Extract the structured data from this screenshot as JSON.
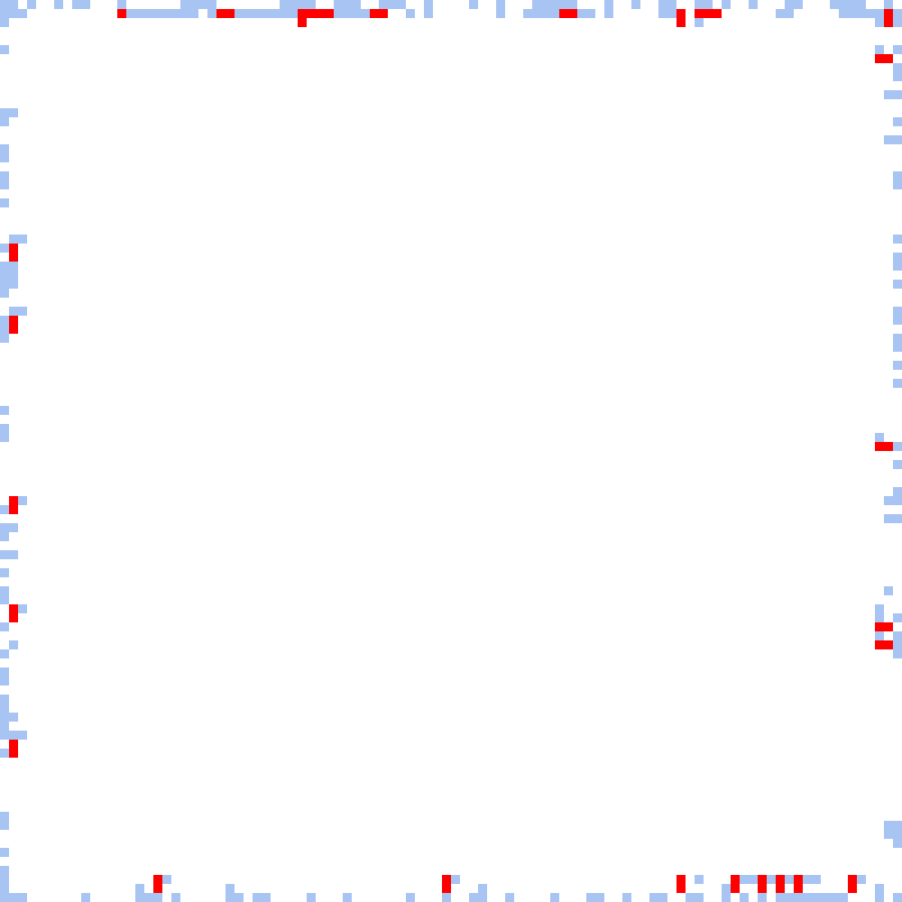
{
  "board": {
    "grid_size": 100,
    "palette": {
      "background": "#ffffff",
      "trail": "#a8c4f2",
      "marker": "#ff0000"
    },
    "trail_cells": [
      [
        0,
        0
      ],
      [
        1,
        0
      ],
      [
        3,
        0
      ],
      [
        6,
        0
      ],
      [
        8,
        0
      ],
      [
        9,
        0
      ],
      [
        13,
        0
      ],
      [
        20,
        0
      ],
      [
        21,
        0
      ],
      [
        22,
        0
      ],
      [
        23,
        0
      ],
      [
        31,
        0
      ],
      [
        32,
        0
      ],
      [
        33,
        0
      ],
      [
        34,
        0
      ],
      [
        37,
        0
      ],
      [
        38,
        0
      ],
      [
        39,
        0
      ],
      [
        42,
        0
      ],
      [
        43,
        0
      ],
      [
        44,
        0
      ],
      [
        47,
        0
      ],
      [
        52,
        0
      ],
      [
        55,
        0
      ],
      [
        59,
        0
      ],
      [
        60,
        0
      ],
      [
        61,
        0
      ],
      [
        62,
        0
      ],
      [
        63,
        0
      ],
      [
        67,
        0
      ],
      [
        70,
        0
      ],
      [
        73,
        0
      ],
      [
        74,
        0
      ],
      [
        77,
        0
      ],
      [
        78,
        0
      ],
      [
        80,
        0
      ],
      [
        83,
        0
      ],
      [
        87,
        0
      ],
      [
        88,
        0
      ],
      [
        92,
        0
      ],
      [
        93,
        0
      ],
      [
        94,
        0
      ],
      [
        95,
        0
      ],
      [
        98,
        0
      ],
      [
        0,
        1
      ],
      [
        1,
        1
      ],
      [
        2,
        1
      ],
      [
        14,
        1
      ],
      [
        15,
        1
      ],
      [
        16,
        1
      ],
      [
        17,
        1
      ],
      [
        18,
        1
      ],
      [
        19,
        1
      ],
      [
        20,
        1
      ],
      [
        21,
        1
      ],
      [
        23,
        1
      ],
      [
        24,
        1
      ],
      [
        25,
        1
      ],
      [
        26,
        1
      ],
      [
        27,
        1
      ],
      [
        28,
        1
      ],
      [
        29,
        1
      ],
      [
        30,
        1
      ],
      [
        31,
        1
      ],
      [
        32,
        1
      ],
      [
        33,
        1
      ],
      [
        34,
        1
      ],
      [
        35,
        1
      ],
      [
        36,
        1
      ],
      [
        37,
        1
      ],
      [
        38,
        1
      ],
      [
        39,
        1
      ],
      [
        40,
        1
      ],
      [
        41,
        1
      ],
      [
        45,
        1
      ],
      [
        47,
        1
      ],
      [
        55,
        1
      ],
      [
        58,
        1
      ],
      [
        59,
        1
      ],
      [
        60,
        1
      ],
      [
        61,
        1
      ],
      [
        63,
        1
      ],
      [
        64,
        1
      ],
      [
        65,
        1
      ],
      [
        67,
        1
      ],
      [
        73,
        1
      ],
      [
        74,
        1
      ],
      [
        75,
        1
      ],
      [
        77,
        1
      ],
      [
        86,
        1
      ],
      [
        87,
        1
      ],
      [
        93,
        1
      ],
      [
        94,
        1
      ],
      [
        95,
        1
      ],
      [
        96,
        1
      ],
      [
        97,
        1
      ],
      [
        99,
        1
      ],
      [
        0,
        2
      ],
      [
        33,
        2
      ],
      [
        75,
        2
      ],
      [
        77,
        2
      ],
      [
        97,
        2
      ],
      [
        99,
        2
      ],
      [
        0,
        5
      ],
      [
        97,
        5
      ],
      [
        99,
        5
      ],
      [
        97,
        6
      ],
      [
        99,
        7
      ],
      [
        99,
        8
      ],
      [
        98,
        10
      ],
      [
        99,
        10
      ],
      [
        0,
        12
      ],
      [
        1,
        12
      ],
      [
        0,
        13
      ],
      [
        99,
        13
      ],
      [
        98,
        15
      ],
      [
        99,
        15
      ],
      [
        0,
        16
      ],
      [
        0,
        17
      ],
      [
        0,
        19
      ],
      [
        0,
        20
      ],
      [
        99,
        19
      ],
      [
        99,
        20
      ],
      [
        0,
        22
      ],
      [
        1,
        26
      ],
      [
        2,
        26
      ],
      [
        99,
        26
      ],
      [
        0,
        27
      ],
      [
        99,
        28
      ],
      [
        99,
        29
      ],
      [
        0,
        29
      ],
      [
        1,
        29
      ],
      [
        0,
        30
      ],
      [
        1,
        30
      ],
      [
        0,
        31
      ],
      [
        1,
        31
      ],
      [
        0,
        32
      ],
      [
        99,
        31
      ],
      [
        1,
        34
      ],
      [
        2,
        34
      ],
      [
        99,
        34
      ],
      [
        0,
        35
      ],
      [
        99,
        35
      ],
      [
        0,
        36
      ],
      [
        0,
        37
      ],
      [
        99,
        37
      ],
      [
        99,
        38
      ],
      [
        99,
        40
      ],
      [
        99,
        42
      ],
      [
        0,
        45
      ],
      [
        0,
        47
      ],
      [
        0,
        48
      ],
      [
        97,
        48
      ],
      [
        98,
        49
      ],
      [
        99,
        49
      ],
      [
        99,
        51
      ],
      [
        99,
        54
      ],
      [
        98,
        55
      ],
      [
        99,
        55
      ],
      [
        1,
        55
      ],
      [
        2,
        55
      ],
      [
        0,
        56
      ],
      [
        98,
        57
      ],
      [
        99,
        57
      ],
      [
        0,
        58
      ],
      [
        1,
        58
      ],
      [
        0,
        59
      ],
      [
        0,
        61
      ],
      [
        1,
        61
      ],
      [
        0,
        63
      ],
      [
        0,
        65
      ],
      [
        0,
        66
      ],
      [
        98,
        65
      ],
      [
        1,
        67
      ],
      [
        2,
        67
      ],
      [
        97,
        67
      ],
      [
        97,
        68
      ],
      [
        99,
        68
      ],
      [
        0,
        69
      ],
      [
        97,
        70
      ],
      [
        99,
        70
      ],
      [
        99,
        71
      ],
      [
        99,
        72
      ],
      [
        1,
        71
      ],
      [
        0,
        72
      ],
      [
        0,
        74
      ],
      [
        0,
        75
      ],
      [
        0,
        77
      ],
      [
        0,
        78
      ],
      [
        0,
        79
      ],
      [
        1,
        79
      ],
      [
        0,
        80
      ],
      [
        0,
        81
      ],
      [
        1,
        81
      ],
      [
        2,
        81
      ],
      [
        0,
        83
      ],
      [
        0,
        90
      ],
      [
        0,
        91
      ],
      [
        98,
        91
      ],
      [
        99,
        91
      ],
      [
        98,
        92
      ],
      [
        99,
        92
      ],
      [
        99,
        93
      ],
      [
        0,
        94
      ],
      [
        0,
        96
      ],
      [
        0,
        97
      ],
      [
        18,
        97
      ],
      [
        50,
        97
      ],
      [
        77,
        97
      ],
      [
        82,
        97
      ],
      [
        83,
        97
      ],
      [
        85,
        97
      ],
      [
        87,
        97
      ],
      [
        88,
        97
      ],
      [
        89,
        97
      ],
      [
        90,
        97
      ],
      [
        95,
        97
      ],
      [
        0,
        98
      ],
      [
        15,
        98
      ],
      [
        25,
        98
      ],
      [
        53,
        98
      ],
      [
        80,
        98
      ],
      [
        86,
        98
      ],
      [
        97,
        98
      ],
      [
        0,
        99
      ],
      [
        1,
        99
      ],
      [
        2,
        99
      ],
      [
        9,
        99
      ],
      [
        15,
        99
      ],
      [
        16,
        99
      ],
      [
        17,
        99
      ],
      [
        19,
        99
      ],
      [
        25,
        99
      ],
      [
        26,
        99
      ],
      [
        28,
        99
      ],
      [
        29,
        99
      ],
      [
        34,
        99
      ],
      [
        38,
        99
      ],
      [
        45,
        99
      ],
      [
        49,
        99
      ],
      [
        52,
        99
      ],
      [
        53,
        99
      ],
      [
        56,
        99
      ],
      [
        61,
        99
      ],
      [
        65,
        99
      ],
      [
        66,
        99
      ],
      [
        69,
        99
      ],
      [
        72,
        99
      ],
      [
        73,
        99
      ],
      [
        76,
        99
      ],
      [
        77,
        99
      ],
      [
        80,
        99
      ],
      [
        82,
        99
      ],
      [
        84,
        99
      ],
      [
        86,
        99
      ],
      [
        87,
        99
      ],
      [
        88,
        99
      ],
      [
        89,
        99
      ],
      [
        90,
        99
      ],
      [
        91,
        99
      ],
      [
        92,
        99
      ],
      [
        93,
        99
      ],
      [
        97,
        99
      ],
      [
        99,
        99
      ]
    ],
    "marker_cells": [
      [
        13,
        1
      ],
      [
        24,
        1
      ],
      [
        25,
        1
      ],
      [
        33,
        1
      ],
      [
        34,
        1
      ],
      [
        35,
        1
      ],
      [
        36,
        1
      ],
      [
        41,
        1
      ],
      [
        42,
        1
      ],
      [
        62,
        1
      ],
      [
        63,
        1
      ],
      [
        75,
        1
      ],
      [
        77,
        1
      ],
      [
        78,
        1
      ],
      [
        79,
        1
      ],
      [
        98,
        1
      ],
      [
        98,
        2
      ],
      [
        33,
        2
      ],
      [
        75,
        2
      ],
      [
        97,
        6
      ],
      [
        98,
        6
      ],
      [
        1,
        27
      ],
      [
        1,
        28
      ],
      [
        1,
        35
      ],
      [
        1,
        36
      ],
      [
        97,
        49
      ],
      [
        98,
        49
      ],
      [
        1,
        55
      ],
      [
        1,
        56
      ],
      [
        1,
        67
      ],
      [
        1,
        68
      ],
      [
        97,
        69
      ],
      [
        98,
        69
      ],
      [
        97,
        71
      ],
      [
        98,
        71
      ],
      [
        1,
        82
      ],
      [
        1,
        83
      ],
      [
        17,
        97
      ],
      [
        17,
        98
      ],
      [
        49,
        97
      ],
      [
        49,
        98
      ],
      [
        75,
        97
      ],
      [
        75,
        98
      ],
      [
        81,
        97
      ],
      [
        81,
        98
      ],
      [
        84,
        97
      ],
      [
        84,
        98
      ],
      [
        86,
        97
      ],
      [
        86,
        98
      ],
      [
        88,
        97
      ],
      [
        88,
        98
      ],
      [
        94,
        97
      ],
      [
        94,
        98
      ]
    ]
  }
}
